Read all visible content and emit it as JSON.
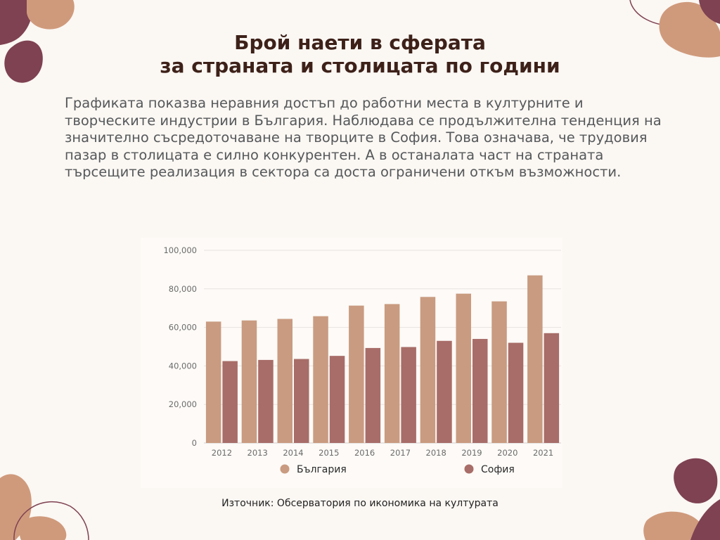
{
  "title_line1": "Брой наети в сферата",
  "title_line2": "за страната и столицата по години",
  "description": "Графиката показва неравния достъп до работни места в културните и творческите индустрии в България. Наблюдава се продължителна тенденция на значително съсредоточаване на творците в София. Това означава, че трудовия пазар в столицата е силно конкурентен. А в останалата част на страната търсещите реализация в сектора са доста ограничени откъм възможности.",
  "source": "Източник: Обсерватория по икономика на културата",
  "colors": {
    "background": "#fbf7f3",
    "bulgaria": "#c99b80",
    "sofia": "#a86d68",
    "title": "#3d2119",
    "deco_light": "#cf9a7c",
    "deco_dark": "#7e4252"
  },
  "chart_data": {
    "type": "bar",
    "categories": [
      "2012",
      "2013",
      "2014",
      "2015",
      "2016",
      "2017",
      "2018",
      "2019",
      "2020",
      "2021"
    ],
    "series": [
      {
        "name": "България",
        "values": [
          63000,
          63600,
          64400,
          65800,
          71300,
          72100,
          75800,
          77500,
          73500,
          87000
        ]
      },
      {
        "name": "София",
        "values": [
          42500,
          43100,
          43600,
          45200,
          49300,
          49800,
          53000,
          54000,
          52000,
          57000
        ]
      }
    ],
    "yticks": [
      "0",
      "20,000",
      "40,000",
      "60,000",
      "80,000",
      "100,000"
    ],
    "ylim": [
      0,
      100000
    ],
    "grid": true,
    "legend_position": "bottom"
  }
}
